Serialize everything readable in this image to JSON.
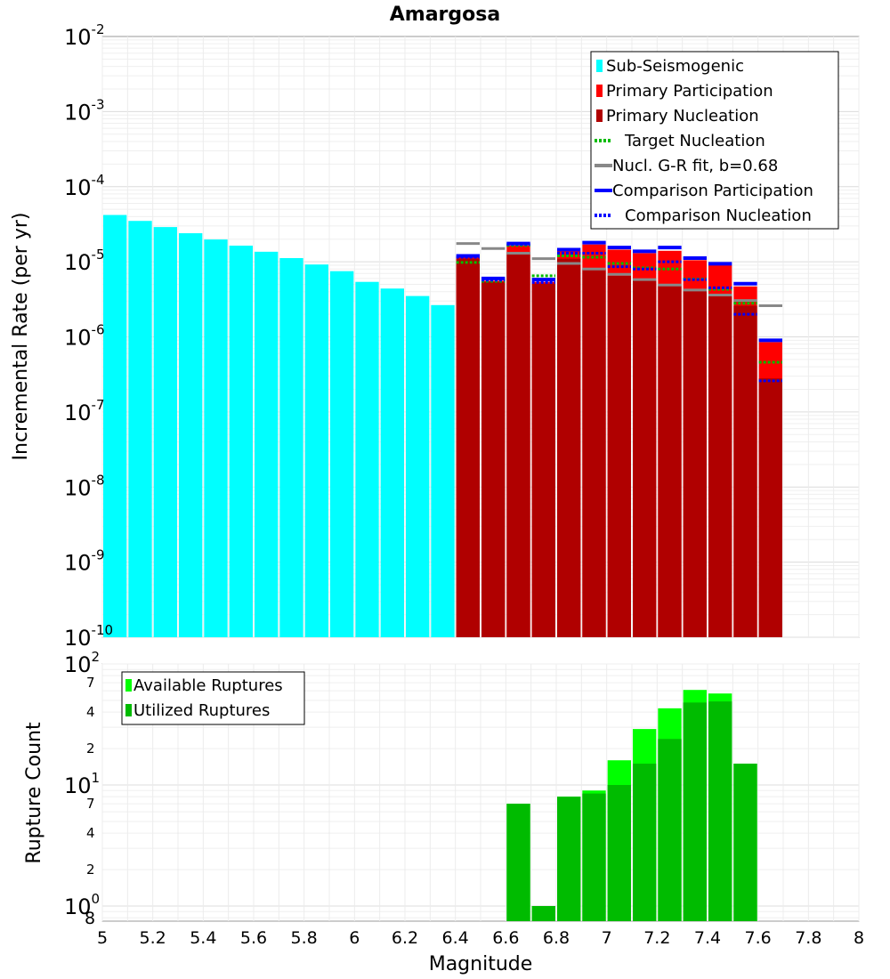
{
  "chart_data": [
    {
      "type": "bar",
      "title": "Amargosa",
      "xlabel": "Magnitude",
      "ylabel": "Incremental Rate (per yr)",
      "yscale": "log",
      "xlim": [
        5,
        8
      ],
      "ylim_exponents": [
        -10,
        -2
      ],
      "bin_width": 0.1,
      "legend_position": "top-right",
      "y_tick_labels": [
        "10-10",
        "10-9",
        "10-8",
        "10-7",
        "10-6",
        "10-5",
        "10-4",
        "10-3",
        "10-2"
      ],
      "legend": [
        {
          "label": "Sub-Seismogenic",
          "color": "#00ffff",
          "kind": "bar"
        },
        {
          "label": "Primary Participation",
          "color": "#ff0000",
          "kind": "bar"
        },
        {
          "label": "Primary Nucleation",
          "color": "#b00000",
          "kind": "bar"
        },
        {
          "label": "Target Nucleation",
          "color": "#00bb00",
          "kind": "dotted"
        },
        {
          "label": "Nucl. G-R fit, b=0.68",
          "color": "#888888",
          "kind": "solid"
        },
        {
          "label": "Comparison Participation",
          "color": "#0000ff",
          "kind": "solid"
        },
        {
          "label": "Comparison Nucleation",
          "color": "#0000ff",
          "kind": "dotted"
        }
      ],
      "series": [
        {
          "name": "Sub-Seismogenic",
          "color": "#00ffff",
          "x": [
            5.05,
            5.15,
            5.25,
            5.35,
            5.45,
            5.55,
            5.65,
            5.75,
            5.85,
            5.95,
            6.05,
            6.15,
            6.25,
            6.35
          ],
          "values": [
            4.2e-05,
            3.5e-05,
            2.9e-05,
            2.4e-05,
            1.98e-05,
            1.64e-05,
            1.36e-05,
            1.12e-05,
            9.2e-06,
            7.5e-06,
            5.4e-06,
            4.4e-06,
            3.5e-06,
            2.65e-06
          ]
        },
        {
          "name": "Primary Participation",
          "color": "#ff0000",
          "x": [
            6.45,
            6.55,
            6.65,
            6.75,
            6.85,
            6.95,
            7.05,
            7.15,
            7.25,
            7.35,
            7.45,
            7.55,
            7.65
          ],
          "values": [
            1.15e-05,
            5.6e-06,
            1.65e-05,
            5.4e-06,
            1.4e-05,
            1.7e-05,
            1.45e-05,
            1.3e-05,
            1.4e-05,
            1.05e-05,
            9e-06,
            4.7e-06,
            8.5e-07
          ]
        },
        {
          "name": "Primary Nucleation",
          "color": "#b00000",
          "x": [
            6.45,
            6.55,
            6.65,
            6.75,
            6.85,
            6.95,
            7.05,
            7.15,
            7.25,
            7.35,
            7.45,
            7.55,
            7.65
          ],
          "values": [
            1.1e-05,
            5.4e-06,
            1.35e-05,
            5.1e-06,
            1.1e-05,
            8e-06,
            6.5e-06,
            5.6e-06,
            4.8e-06,
            4.2e-06,
            3.5e-06,
            2.6e-06,
            2.8e-07
          ]
        },
        {
          "name": "Target Nucleation",
          "color": "#00bb00",
          "x": [
            6.45,
            6.55,
            6.65,
            6.75,
            6.85,
            6.95,
            7.05,
            7.15,
            7.25,
            7.35,
            7.45,
            7.55,
            7.65
          ],
          "values": [
            9.8e-06,
            5.5e-06,
            1.65e-05,
            6.5e-06,
            1.2e-05,
            1.15e-05,
            9.5e-06,
            8.3e-06,
            8e-06,
            5.9e-06,
            4.3e-06,
            2.8e-06,
            4.6e-07
          ]
        },
        {
          "name": "Nucl. G-R fit, b=0.68",
          "color": "#888888",
          "x": [
            6.45,
            6.55,
            6.65,
            6.75,
            6.85,
            6.95,
            7.05,
            7.15,
            7.25,
            7.35,
            7.45,
            7.55,
            7.65
          ],
          "values": [
            1.75e-05,
            1.5e-05,
            1.3e-05,
            1.1e-05,
            9.5e-06,
            8e-06,
            6.8e-06,
            5.8e-06,
            4.9e-06,
            4.2e-06,
            3.6e-06,
            3.05e-06,
            2.6e-06
          ]
        },
        {
          "name": "Comparison Participation",
          "color": "#0000ff",
          "x": [
            6.45,
            6.55,
            6.65,
            6.75,
            6.85,
            6.95,
            7.05,
            7.15,
            7.25,
            7.35,
            7.45,
            7.55,
            7.65
          ],
          "values": [
            1.2e-05,
            6e-06,
            1.75e-05,
            5.8e-06,
            1.45e-05,
            1.8e-05,
            1.55e-05,
            1.38e-05,
            1.55e-05,
            1.12e-05,
            9.4e-06,
            5.1e-06,
            9e-07
          ]
        },
        {
          "name": "Comparison Nucleation",
          "color": "#0000ff",
          "x": [
            6.45,
            6.55,
            6.65,
            6.75,
            6.85,
            6.95,
            7.05,
            7.15,
            7.25,
            7.35,
            7.45,
            7.55,
            7.65
          ],
          "values": [
            1.15e-05,
            5.7e-06,
            1.7e-05,
            5.3e-06,
            1.3e-05,
            1.3e-05,
            8.6e-06,
            8e-06,
            1e-05,
            5.8e-06,
            4.5e-06,
            2e-06,
            2.6e-07
          ]
        }
      ]
    },
    {
      "type": "bar",
      "xlabel": "Magnitude",
      "ylabel": "Rupture Count",
      "yscale": "log",
      "xlim": [
        5,
        8
      ],
      "ylim": [
        0.75,
        100
      ],
      "x_tick_labels": [
        "5",
        "5.2",
        "5.4",
        "5.6",
        "5.8",
        "6",
        "6.2",
        "6.4",
        "6.6",
        "6.8",
        "7",
        "7.2",
        "7.4",
        "7.6",
        "7.8",
        "8"
      ],
      "y_major_tick_labels": [
        "10⁰",
        "10¹",
        "10²"
      ],
      "y_minor_tick_labels": [
        "8",
        "2",
        "4",
        "7",
        "2",
        "4",
        "7"
      ],
      "legend_position": "top-left",
      "legend": [
        {
          "label": "Available Ruptures",
          "color": "#00ff00"
        },
        {
          "label": "Utilized Ruptures",
          "color": "#00bb00"
        }
      ],
      "series": [
        {
          "name": "Available Ruptures",
          "color": "#00ff00",
          "x": [
            6.65,
            6.75,
            6.85,
            6.95,
            7.05,
            7.15,
            7.25,
            7.35,
            7.45,
            7.55
          ],
          "values": [
            7,
            1,
            8,
            9,
            16,
            29,
            43,
            61,
            57,
            15
          ]
        },
        {
          "name": "Utilized Ruptures",
          "color": "#00bb00",
          "x": [
            6.65,
            6.75,
            6.85,
            6.95,
            7.05,
            7.15,
            7.25,
            7.35,
            7.45,
            7.55
          ],
          "values": [
            7,
            1,
            8,
            8.5,
            10,
            15,
            24,
            48,
            49,
            15
          ]
        }
      ]
    }
  ]
}
